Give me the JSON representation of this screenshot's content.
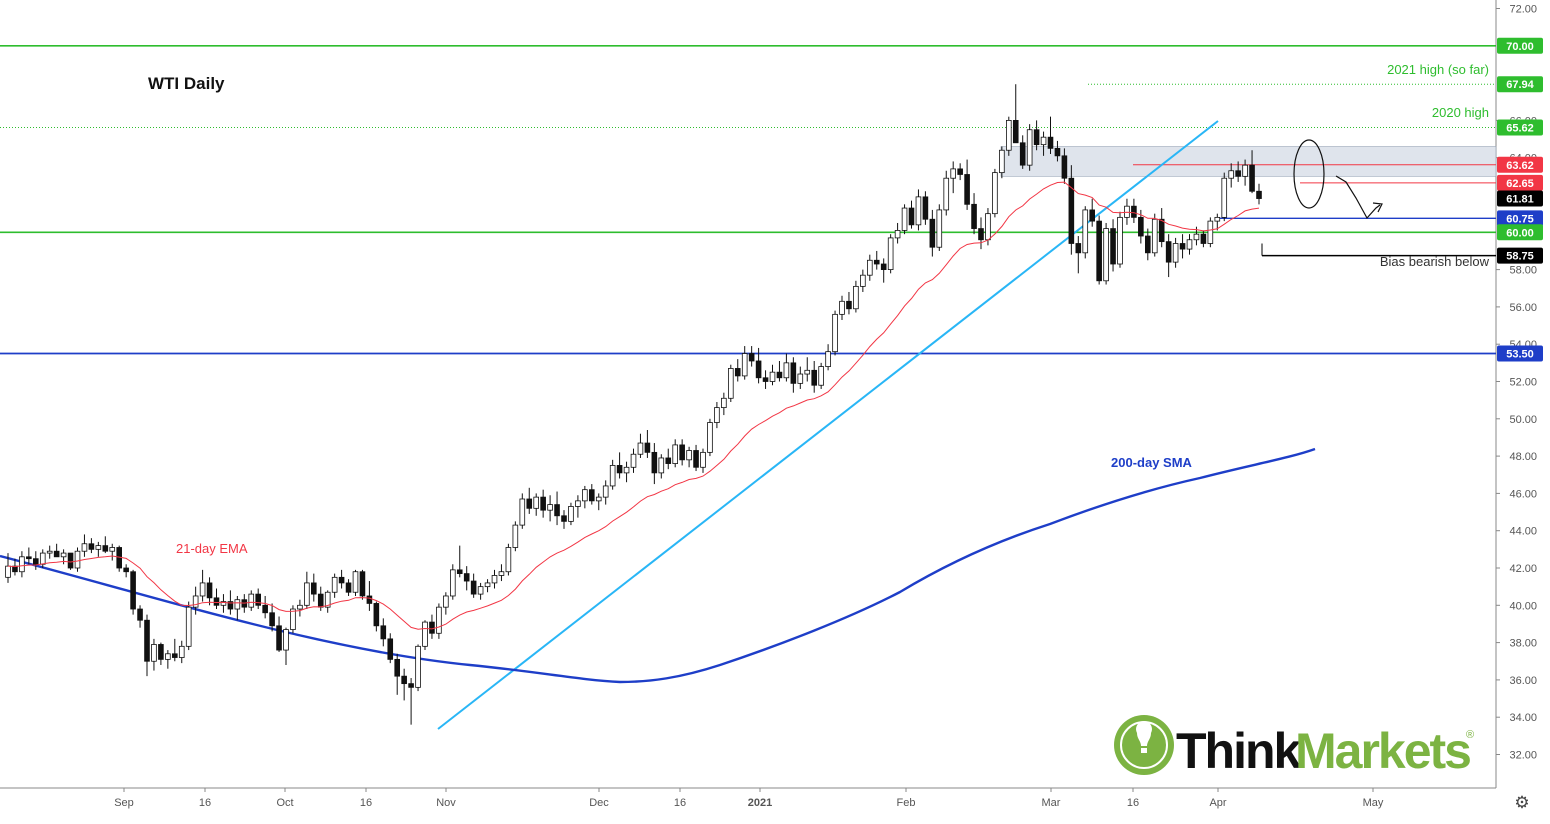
{
  "chart_data": {
    "type": "candlestick",
    "title": "WTI Daily",
    "ylim": [
      31,
      72
    ],
    "y_ticks": [
      "72.00",
      "66.00",
      "64.00",
      "58.00",
      "56.00",
      "54.00",
      "52.00",
      "50.00",
      "48.00",
      "46.00",
      "44.00",
      "42.00",
      "40.00",
      "38.00",
      "36.00",
      "34.00",
      "32.00"
    ],
    "x_ticks": [
      "Sep",
      "16",
      "Oct",
      "16",
      "Nov",
      "Dec",
      "16",
      "2021",
      "Feb",
      "Mar",
      "16",
      "Apr",
      "May"
    ],
    "horizontal_levels": [
      {
        "label": "70.00",
        "value": 70.0,
        "color": "#2ebd2e"
      },
      {
        "label": "67.94",
        "value": 67.94,
        "color": "#2ebd2e"
      },
      {
        "label": "65.62",
        "value": 65.62,
        "color": "#2ebd2e"
      },
      {
        "label": "63.62",
        "value": 63.62,
        "color": "#f23645"
      },
      {
        "label": "62.65",
        "value": 62.65,
        "color": "#f23645"
      },
      {
        "label": "61.81",
        "value": 61.81,
        "color": "#000000"
      },
      {
        "label": "60.75",
        "value": 60.75,
        "color": "#1e3ec8"
      },
      {
        "label": "60.00",
        "value": 60.0,
        "color": "#2ebd2e"
      },
      {
        "label": "58.75",
        "value": 58.75,
        "color": "#000000"
      },
      {
        "label": "53.50",
        "value": 53.5,
        "color": "#1e3ec8"
      }
    ],
    "annotations": [
      {
        "text": "2021 high (so far)",
        "color": "#2ebd2e"
      },
      {
        "text": "2020 high",
        "color": "#2ebd2e"
      },
      {
        "text": "Bias bearish below",
        "color": "#333333"
      },
      {
        "text": "21-day EMA",
        "color": "#f23645"
      },
      {
        "text": "200-day SMA",
        "color": "#1e3ec8"
      }
    ],
    "series": [
      {
        "name": "21-day EMA",
        "color": "#f23645"
      },
      {
        "name": "200-day SMA",
        "color": "#1e3ec8"
      }
    ],
    "candles_ohlc": [
      [
        41.5,
        42.8,
        41.2,
        42.1
      ],
      [
        42.1,
        42.5,
        41.6,
        41.8
      ],
      [
        41.8,
        42.9,
        41.5,
        42.6
      ],
      [
        42.6,
        43.1,
        42.2,
        42.5
      ],
      [
        42.5,
        42.9,
        41.9,
        42.2
      ],
      [
        42.2,
        43.0,
        42.0,
        42.8
      ],
      [
        42.8,
        43.2,
        42.5,
        42.9
      ],
      [
        42.9,
        43.3,
        42.6,
        42.6
      ],
      [
        42.6,
        43.0,
        42.2,
        42.8
      ],
      [
        42.8,
        42.8,
        41.9,
        42.0
      ],
      [
        42.0,
        43.1,
        41.8,
        42.9
      ],
      [
        42.9,
        43.8,
        42.6,
        43.3
      ],
      [
        43.3,
        43.6,
        42.8,
        43.0
      ],
      [
        43.0,
        43.4,
        42.6,
        43.2
      ],
      [
        43.2,
        43.7,
        42.8,
        42.9
      ],
      [
        42.9,
        43.3,
        42.4,
        43.1
      ],
      [
        43.1,
        43.2,
        41.8,
        42.0
      ],
      [
        42.0,
        42.2,
        41.5,
        41.8
      ],
      [
        41.8,
        41.9,
        39.5,
        39.8
      ],
      [
        39.8,
        40.0,
        38.8,
        39.2
      ],
      [
        39.2,
        39.5,
        36.2,
        37.0
      ],
      [
        37.0,
        38.2,
        36.5,
        37.9
      ],
      [
        37.9,
        38.0,
        36.8,
        37.1
      ],
      [
        37.1,
        37.6,
        36.6,
        37.4
      ],
      [
        37.4,
        38.2,
        37.0,
        37.2
      ],
      [
        37.2,
        38.1,
        36.9,
        37.8
      ],
      [
        37.8,
        40.2,
        37.6,
        39.9
      ],
      [
        39.9,
        41.0,
        39.5,
        40.5
      ],
      [
        40.5,
        41.9,
        40.2,
        41.2
      ],
      [
        41.2,
        41.5,
        40.0,
        40.4
      ],
      [
        40.4,
        40.9,
        39.8,
        40.0
      ],
      [
        40.0,
        40.6,
        39.6,
        40.2
      ],
      [
        40.2,
        40.8,
        39.5,
        39.8
      ],
      [
        39.8,
        40.5,
        39.2,
        40.3
      ],
      [
        40.3,
        40.6,
        39.6,
        39.9
      ],
      [
        39.9,
        40.8,
        39.7,
        40.6
      ],
      [
        40.6,
        40.9,
        39.8,
        40.0
      ],
      [
        40.0,
        40.5,
        39.3,
        39.6
      ],
      [
        39.6,
        40.1,
        38.6,
        38.9
      ],
      [
        38.9,
        39.4,
        37.5,
        37.6
      ],
      [
        37.6,
        38.8,
        36.8,
        38.7
      ],
      [
        38.7,
        40.0,
        38.5,
        39.8
      ],
      [
        39.8,
        40.3,
        39.4,
        40.0
      ],
      [
        40.0,
        41.8,
        39.8,
        41.2
      ],
      [
        41.2,
        41.7,
        40.2,
        40.6
      ],
      [
        40.6,
        41.0,
        39.7,
        39.9
      ],
      [
        39.9,
        40.8,
        39.6,
        40.7
      ],
      [
        40.7,
        41.7,
        40.4,
        41.5
      ],
      [
        41.5,
        41.9,
        40.9,
        41.2
      ],
      [
        41.2,
        41.4,
        40.5,
        40.7
      ],
      [
        40.7,
        41.9,
        40.5,
        41.8
      ],
      [
        41.8,
        41.9,
        40.3,
        40.5
      ],
      [
        40.5,
        41.3,
        39.7,
        40.1
      ],
      [
        40.1,
        40.2,
        38.6,
        38.9
      ],
      [
        38.9,
        39.3,
        37.8,
        38.2
      ],
      [
        38.2,
        38.5,
        36.9,
        37.1
      ],
      [
        37.1,
        37.4,
        35.2,
        36.2
      ],
      [
        36.2,
        36.6,
        34.9,
        35.8
      ],
      [
        35.8,
        36.1,
        33.6,
        35.6
      ],
      [
        35.6,
        37.9,
        35.4,
        37.8
      ],
      [
        37.8,
        39.2,
        37.6,
        39.1
      ],
      [
        39.1,
        39.5,
        38.2,
        38.5
      ],
      [
        38.5,
        40.1,
        38.2,
        39.9
      ],
      [
        39.9,
        40.7,
        39.5,
        40.5
      ],
      [
        40.5,
        42.2,
        40.3,
        41.9
      ],
      [
        41.9,
        43.2,
        41.5,
        41.7
      ],
      [
        41.7,
        42.1,
        40.8,
        41.3
      ],
      [
        41.3,
        41.7,
        40.4,
        40.6
      ],
      [
        40.6,
        41.2,
        40.3,
        41.0
      ],
      [
        41.0,
        41.4,
        40.7,
        41.2
      ],
      [
        41.2,
        41.9,
        40.9,
        41.6
      ],
      [
        41.6,
        42.2,
        41.3,
        41.8
      ],
      [
        41.8,
        43.3,
        41.6,
        43.1
      ],
      [
        43.1,
        44.5,
        42.9,
        44.3
      ],
      [
        44.3,
        46.0,
        44.1,
        45.7
      ],
      [
        45.7,
        46.3,
        44.9,
        45.2
      ],
      [
        45.2,
        46.0,
        44.8,
        45.8
      ],
      [
        45.8,
        46.2,
        44.7,
        45.1
      ],
      [
        45.1,
        45.9,
        44.5,
        45.4
      ],
      [
        45.4,
        46.1,
        44.3,
        44.8
      ],
      [
        44.8,
        45.1,
        44.1,
        44.5
      ],
      [
        44.5,
        45.5,
        44.3,
        45.3
      ],
      [
        45.3,
        45.9,
        44.7,
        45.6
      ],
      [
        45.6,
        46.4,
        45.2,
        46.2
      ],
      [
        46.2,
        46.5,
        45.4,
        45.6
      ],
      [
        45.6,
        46.0,
        45.1,
        45.8
      ],
      [
        45.8,
        46.7,
        45.4,
        46.4
      ],
      [
        46.4,
        47.8,
        46.2,
        47.5
      ],
      [
        47.5,
        48.2,
        46.8,
        47.1
      ],
      [
        47.1,
        47.7,
        46.6,
        47.4
      ],
      [
        47.4,
        48.4,
        47.1,
        48.1
      ],
      [
        48.1,
        49.2,
        47.9,
        48.7
      ],
      [
        48.7,
        49.4,
        47.9,
        48.2
      ],
      [
        48.2,
        48.7,
        46.5,
        47.1
      ],
      [
        47.1,
        48.1,
        46.8,
        47.9
      ],
      [
        47.9,
        48.4,
        47.3,
        47.6
      ],
      [
        47.6,
        48.9,
        47.4,
        48.6
      ],
      [
        48.6,
        48.9,
        47.5,
        47.8
      ],
      [
        47.8,
        48.5,
        47.4,
        48.3
      ],
      [
        48.3,
        48.6,
        47.2,
        47.4
      ],
      [
        47.4,
        48.4,
        47.1,
        48.2
      ],
      [
        48.2,
        50.0,
        48.0,
        49.8
      ],
      [
        49.8,
        50.9,
        49.5,
        50.6
      ],
      [
        50.6,
        51.4,
        50.2,
        51.1
      ],
      [
        51.1,
        52.9,
        50.9,
        52.7
      ],
      [
        52.7,
        53.2,
        52.0,
        52.3
      ],
      [
        52.3,
        53.9,
        52.1,
        53.5
      ],
      [
        53.5,
        53.9,
        52.8,
        53.1
      ],
      [
        53.1,
        53.8,
        51.9,
        52.2
      ],
      [
        52.2,
        52.6,
        51.6,
        52.0
      ],
      [
        52.0,
        52.9,
        51.8,
        52.5
      ],
      [
        52.5,
        53.1,
        52.0,
        52.2
      ],
      [
        52.2,
        53.5,
        52.0,
        53.0
      ],
      [
        53.0,
        53.3,
        51.4,
        51.9
      ],
      [
        51.9,
        52.8,
        51.6,
        52.4
      ],
      [
        52.4,
        53.3,
        52.0,
        52.6
      ],
      [
        52.6,
        53.1,
        51.4,
        51.8
      ],
      [
        51.8,
        53.0,
        51.6,
        52.8
      ],
      [
        52.8,
        54.0,
        52.6,
        53.6
      ],
      [
        53.6,
        55.8,
        53.4,
        55.6
      ],
      [
        55.6,
        56.6,
        55.3,
        56.3
      ],
      [
        56.3,
        56.8,
        55.6,
        55.9
      ],
      [
        55.9,
        57.4,
        55.7,
        57.1
      ],
      [
        57.1,
        58.0,
        56.8,
        57.7
      ],
      [
        57.7,
        58.8,
        57.4,
        58.5
      ],
      [
        58.5,
        59.0,
        58.0,
        58.3
      ],
      [
        58.3,
        58.6,
        57.3,
        58.0
      ],
      [
        58.0,
        59.9,
        57.8,
        59.7
      ],
      [
        59.7,
        60.5,
        59.4,
        60.1
      ],
      [
        60.1,
        61.5,
        59.9,
        61.3
      ],
      [
        61.3,
        61.7,
        60.2,
        60.4
      ],
      [
        60.4,
        62.3,
        60.1,
        61.9
      ],
      [
        61.9,
        62.2,
        60.4,
        60.7
      ],
      [
        60.7,
        61.2,
        58.7,
        59.2
      ],
      [
        59.2,
        61.5,
        59.0,
        61.2
      ],
      [
        61.2,
        63.3,
        60.9,
        62.9
      ],
      [
        62.9,
        63.8,
        62.1,
        63.4
      ],
      [
        63.4,
        63.7,
        62.8,
        63.1
      ],
      [
        63.1,
        63.9,
        61.2,
        61.5
      ],
      [
        61.5,
        62.1,
        59.9,
        60.2
      ],
      [
        60.2,
        60.8,
        59.1,
        59.6
      ],
      [
        59.6,
        61.3,
        59.3,
        61.0
      ],
      [
        61.0,
        63.4,
        60.8,
        63.2
      ],
      [
        63.2,
        64.6,
        62.9,
        64.4
      ],
      [
        64.4,
        66.2,
        64.1,
        66.0
      ],
      [
        66.0,
        67.94,
        65.1,
        64.8
      ],
      [
        64.8,
        65.2,
        63.4,
        63.6
      ],
      [
        63.6,
        65.8,
        63.3,
        65.5
      ],
      [
        65.5,
        66.0,
        64.4,
        64.7
      ],
      [
        64.7,
        65.4,
        64.1,
        65.1
      ],
      [
        65.1,
        66.2,
        64.2,
        64.5
      ],
      [
        64.5,
        64.9,
        63.8,
        64.1
      ],
      [
        64.1,
        64.5,
        62.6,
        62.9
      ],
      [
        62.9,
        63.6,
        58.8,
        59.4
      ],
      [
        59.4,
        59.8,
        57.8,
        58.9
      ],
      [
        58.9,
        61.4,
        58.6,
        61.2
      ],
      [
        61.2,
        61.8,
        60.3,
        60.6
      ],
      [
        60.6,
        60.9,
        57.2,
        57.4
      ],
      [
        57.4,
        60.5,
        57.2,
        60.2
      ],
      [
        60.2,
        60.7,
        57.9,
        58.3
      ],
      [
        58.3,
        61.1,
        58.1,
        60.8
      ],
      [
        60.8,
        61.8,
        60.4,
        61.4
      ],
      [
        61.4,
        61.8,
        60.5,
        60.8
      ],
      [
        60.8,
        61.2,
        59.4,
        59.8
      ],
      [
        59.8,
        60.2,
        58.5,
        58.9
      ],
      [
        58.9,
        61.0,
        58.7,
        60.7
      ],
      [
        60.7,
        61.3,
        59.2,
        59.5
      ],
      [
        59.5,
        59.9,
        57.6,
        58.4
      ],
      [
        58.4,
        59.7,
        58.1,
        59.4
      ],
      [
        59.4,
        59.9,
        58.6,
        59.1
      ],
      [
        59.1,
        59.9,
        58.8,
        59.6
      ],
      [
        59.6,
        60.3,
        59.3,
        59.9
      ],
      [
        59.9,
        60.1,
        59.2,
        59.4
      ],
      [
        59.4,
        60.8,
        59.2,
        60.6
      ],
      [
        60.6,
        61.0,
        60.1,
        60.8
      ],
      [
        60.8,
        63.2,
        60.6,
        62.9
      ],
      [
        62.9,
        63.7,
        62.4,
        63.3
      ],
      [
        63.3,
        63.8,
        62.7,
        63.0
      ],
      [
        63.0,
        63.9,
        62.5,
        63.6
      ],
      [
        63.6,
        64.4,
        62.1,
        62.2
      ],
      [
        62.2,
        62.6,
        61.5,
        61.81
      ]
    ]
  },
  "logo_text_think": "Think",
  "logo_text_markets": "Markets",
  "logo_registered": "®",
  "settings_icon": "gear-icon"
}
